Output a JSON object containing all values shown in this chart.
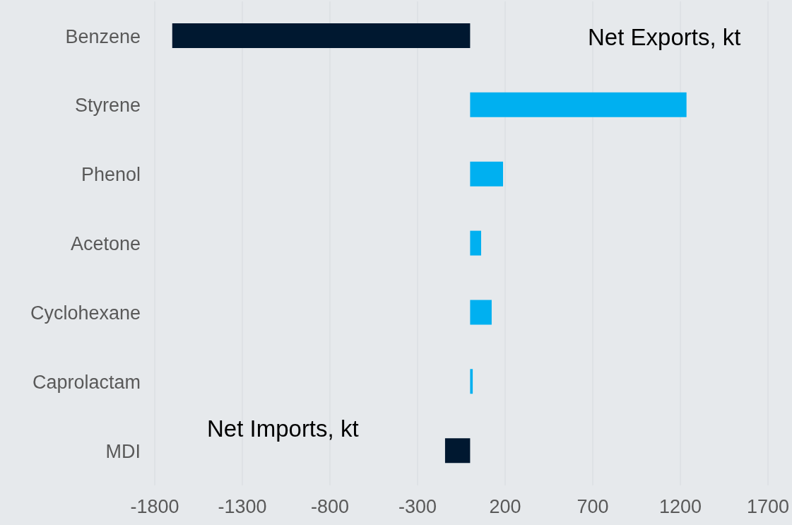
{
  "chart_data": {
    "type": "bar",
    "orientation": "horizontal",
    "categories": [
      "Benzene",
      "Styrene",
      "Phenol",
      "Acetone",
      "Cyclohexane",
      "Caprolactam",
      "MDI"
    ],
    "values": [
      -1700,
      1235,
      188,
      63,
      123,
      15,
      -143
    ],
    "colors": [
      "#001830",
      "#00b0f0",
      "#00b0f0",
      "#00b0f0",
      "#00b0f0",
      "#00b0f0",
      "#001830"
    ],
    "xlim": [
      -1800,
      1700
    ],
    "xticks": [
      -1800,
      -1300,
      -800,
      -300,
      200,
      700,
      1200,
      1700
    ],
    "grid": "x",
    "annotations": [
      "Net Exports, kt",
      "Net Imports, kt"
    ]
  }
}
